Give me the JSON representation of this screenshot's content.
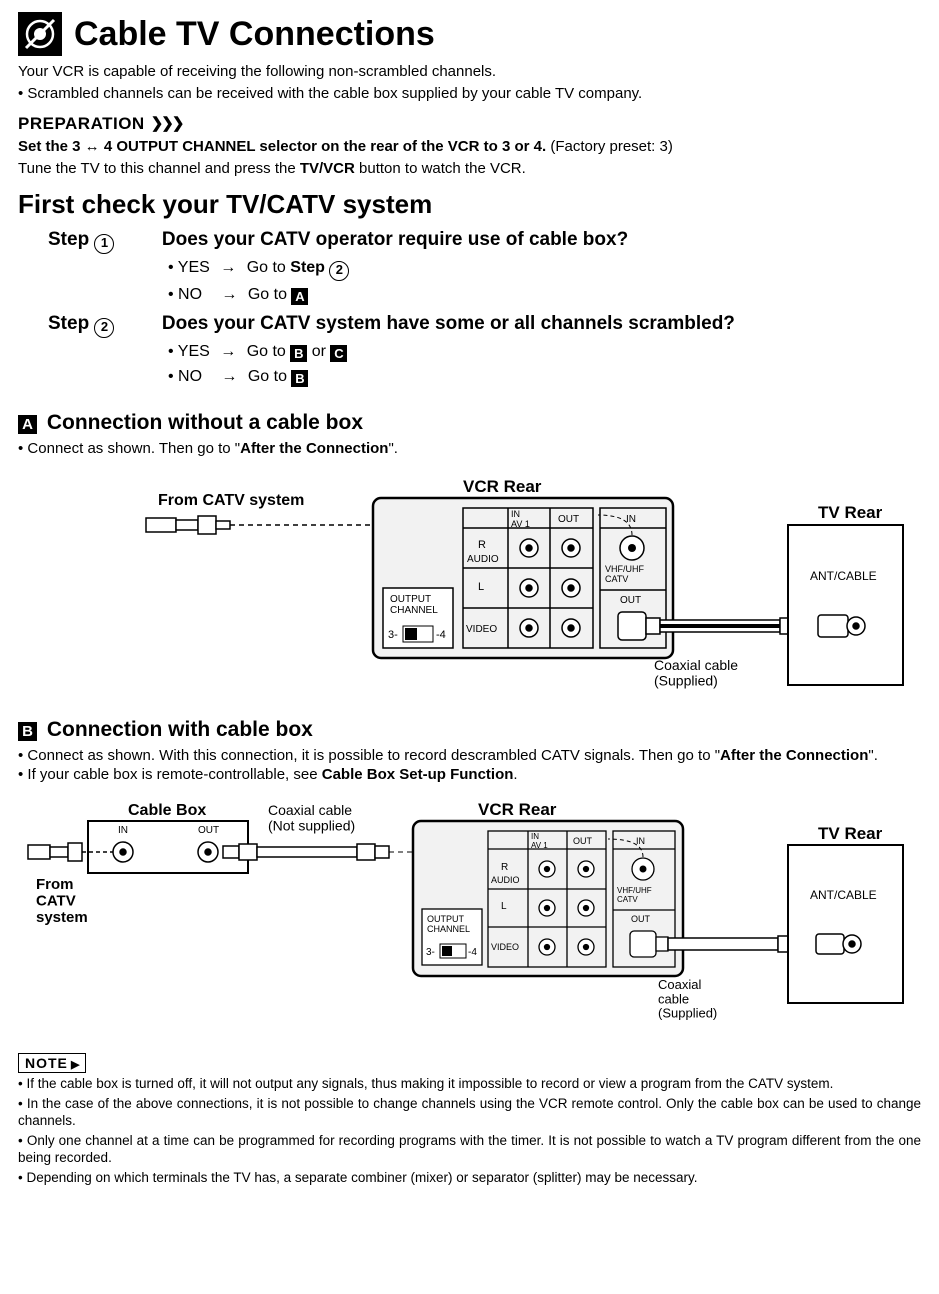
{
  "title": "Cable TV Connections",
  "intro1": "Your VCR is capable of receiving the following non-scrambled channels.",
  "intro2": "Scrambled channels can be received with the cable box supplied by your cable TV company.",
  "prep_head": "PREPARATION",
  "prep_line_a": "Set the 3 ↔ 4 OUTPUT CHANNEL selector on the rear of the VCR to 3 or 4.",
  "prep_line_b": " (Factory preset: 3)",
  "prep_line2_a": "Tune the TV to this channel and press the ",
  "prep_line2_b": "TV/VCR",
  "prep_line2_c": " button to watch the VCR.",
  "h2": "First check your TV/CATV system",
  "step1_label": "Step",
  "step1_num": "1",
  "step1_q": "Does your CATV operator require use of cable box?",
  "step1_yes_a": "YES",
  "step1_yes_b": "Go to ",
  "step1_yes_c": "Step",
  "step1_yes_d": "2",
  "step1_no_a": "NO",
  "step1_no_b": "Go to ",
  "step1_no_box": "A",
  "step2_label": "Step",
  "step2_num": "2",
  "step2_q": "Does your CATV system have some or all channels scrambled?",
  "step2_yes_a": "YES",
  "step2_yes_b": "Go to ",
  "step2_yes_box1": "B",
  "step2_yes_or": " or ",
  "step2_yes_box2": "C",
  "step2_no_a": "NO",
  "step2_no_b": "Go to ",
  "step2_no_box": "B",
  "secA_box": "A",
  "secA_title": " Connection without a cable box",
  "secA_text_a": "Connect as shown. Then go to \"",
  "secA_text_b": "After the Connection",
  "secA_text_c": "\".",
  "secB_box": "B",
  "secB_title": " Connection with cable box",
  "secB_text1_a": "Connect as shown. With this connection, it is possible to record descrambled CATV signals. Then go to \"",
  "secB_text1_b": "After the Connection",
  "secB_text1_c": "\".",
  "secB_text2_a": "If your cable box is remote-controllable, see ",
  "secB_text2_b": "Cable Box Set-up Function",
  "secB_text2_c": ".",
  "diagA": {
    "from_catv": "From CATV system",
    "vcr_rear": "VCR Rear",
    "tv_rear": "TV Rear",
    "ant_cable": "ANT/CABLE",
    "coax_supplied": "Coaxial cable\n(Supplied)",
    "vcr": {
      "in_av1": "IN\nAV 1",
      "out": "OUT",
      "in": "IN",
      "r": "R",
      "audio": "AUDIO",
      "l": "L",
      "vhf": "VHF/UHF\nCATV",
      "out2": "OUT",
      "video": "VIDEO",
      "output_channel": "OUTPUT\nCHANNEL",
      "three": "3-",
      "four": "-4"
    }
  },
  "diagB": {
    "cable_box": "Cable Box",
    "cb_in": "IN",
    "cb_out": "OUT",
    "coax_notsupplied": "Coaxial cable\n(Not supplied)",
    "from_catv": "From\nCATV\nsystem",
    "vcr_rear": "VCR Rear",
    "tv_rear": "TV Rear",
    "ant_cable": "ANT/CABLE",
    "coax_supplied": "Coaxial\ncable\n(Supplied)"
  },
  "note_head": "NOTE",
  "notes": {
    "n1": "If the cable box is turned off, it will not output any signals, thus making it impossible to record or view a program from the CATV system.",
    "n2": "In the case of the above connections, it is not possible to change channels using the VCR remote control. Only the cable box can be used to change channels.",
    "n3": "Only one channel at a time can be programmed for recording programs with the timer. It is not possible to watch a TV program different from the one being recorded.",
    "n4": "Depending on which terminals the TV has, a separate combiner (mixer) or separator (splitter) may be necessary."
  }
}
